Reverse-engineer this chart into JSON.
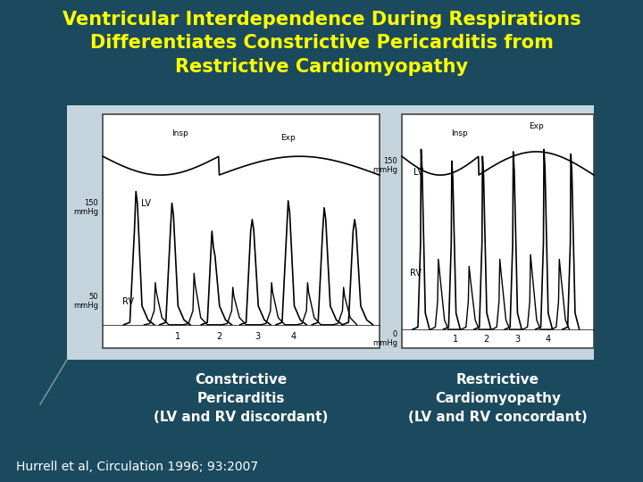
{
  "background_color": "#1b4a5e",
  "title_lines": [
    "Ventricular Interdependence During Respirations",
    "Differentiates Constrictive Pericarditis from",
    "Restrictive Cardiomyopathy"
  ],
  "title_color": "#ffff00",
  "title_fontsize": 15,
  "label_left_line1": "Constrictive",
  "label_left_line2": "Pericarditis",
  "label_left_line3": "(LV and RV discordant)",
  "label_right_line1": "Restrictive",
  "label_right_line2": "Cardiomyopathy",
  "label_right_line3": "(LV and RV concordant)",
  "label_color": "#ffffff",
  "label_fontsize": 11,
  "citation": "Hurrell et al, Circulation 1996; 93:2007",
  "citation_color": "#ffffff",
  "citation_fontsize": 10,
  "outer_panel_color": "#c5d5dd",
  "panel_bg": "#ffffff"
}
